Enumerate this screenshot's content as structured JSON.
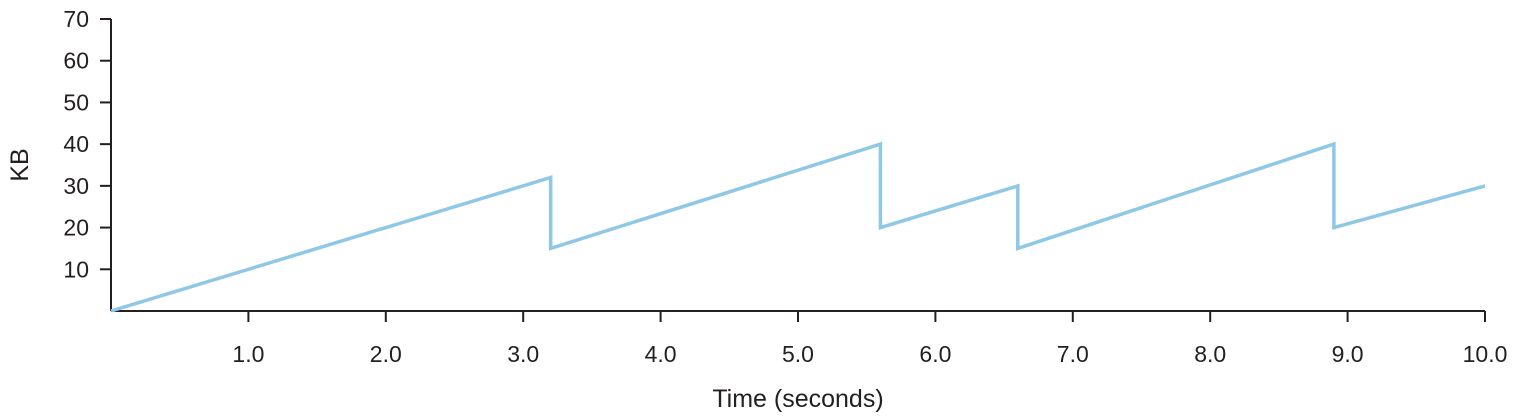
{
  "chart_data": {
    "type": "line",
    "title": "",
    "xlabel": "Time (seconds)",
    "ylabel": "KB",
    "xlim": [
      0,
      10
    ],
    "ylim": [
      0,
      70
    ],
    "grid": false,
    "legend": null,
    "x_ticks": [
      "1.0",
      "2.0",
      "3.0",
      "4.0",
      "5.0",
      "6.0",
      "7.0",
      "8.0",
      "9.0",
      "10.0"
    ],
    "x_tick_values": [
      1,
      2,
      3,
      4,
      5,
      6,
      7,
      8,
      9,
      10
    ],
    "y_ticks": [
      "10",
      "20",
      "30",
      "40",
      "50",
      "60",
      "70"
    ],
    "y_tick_values": [
      10,
      20,
      30,
      40,
      50,
      60,
      70
    ],
    "series": [
      {
        "name": "KB",
        "color": "#8ec8e6",
        "x": [
          0,
          3.2,
          3.2,
          5.6,
          5.6,
          6.6,
          6.6,
          8.9,
          8.9,
          10.0
        ],
        "y": [
          0,
          32,
          15,
          40,
          20,
          30,
          15,
          40,
          20,
          30
        ]
      }
    ]
  },
  "colors": {
    "axis": "#231f20",
    "series": "#8ec8e6"
  }
}
